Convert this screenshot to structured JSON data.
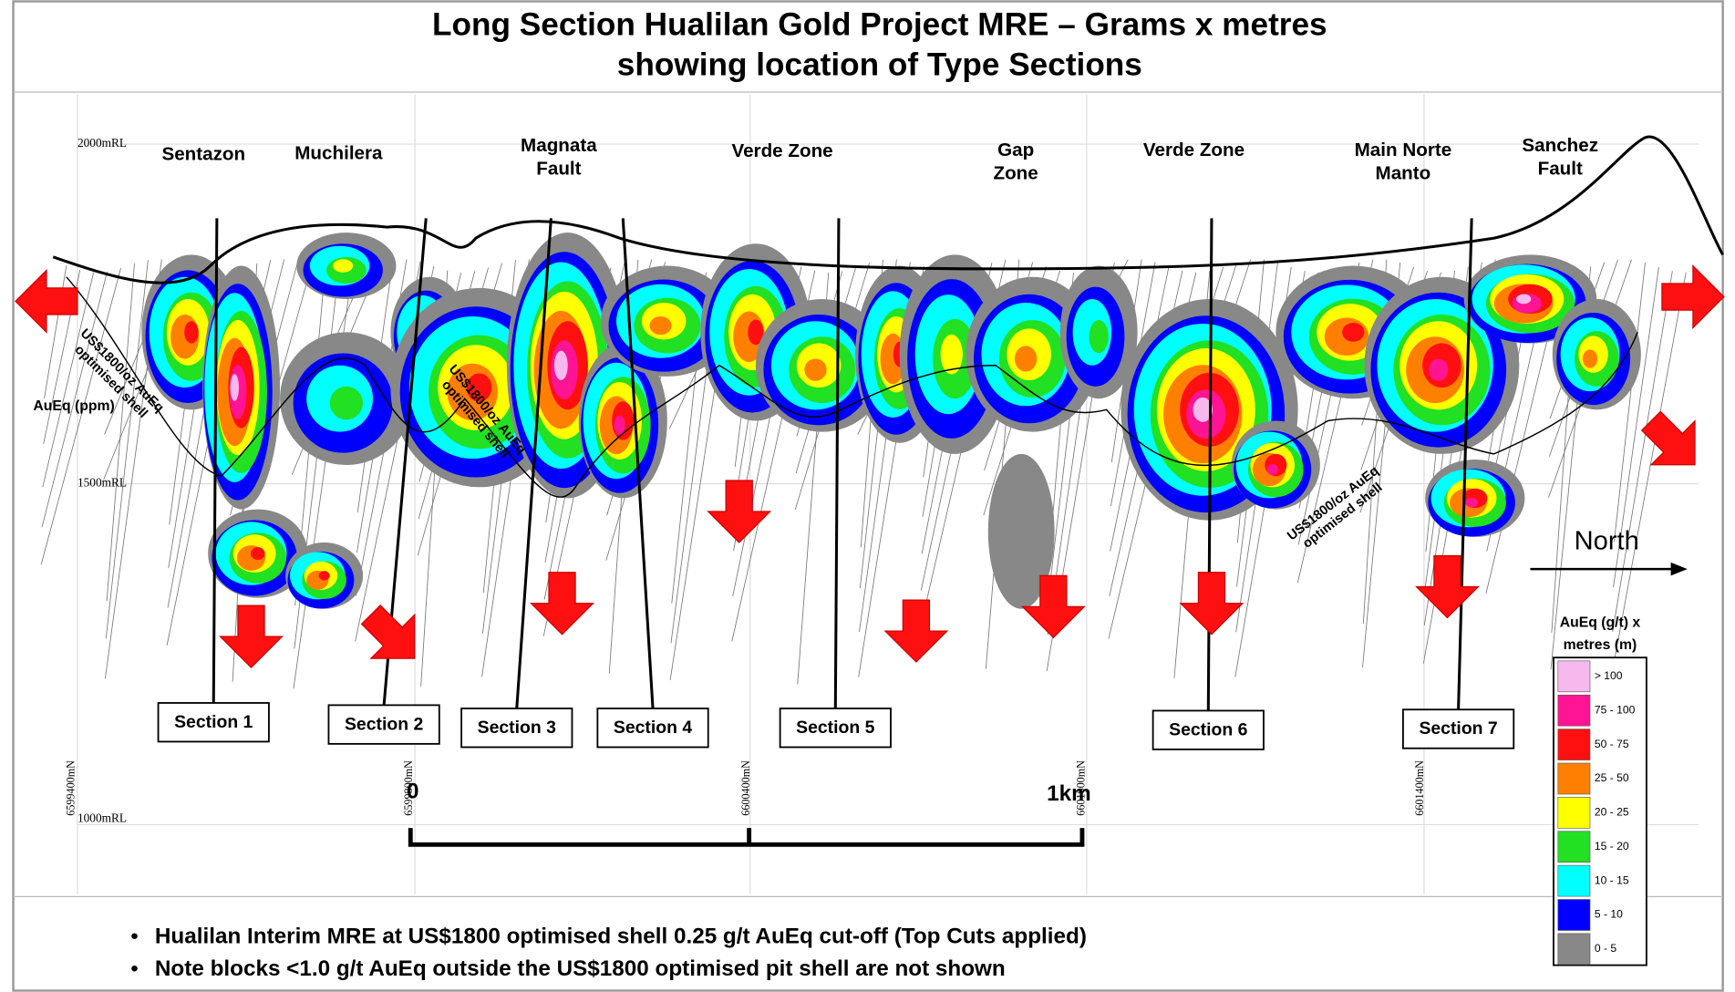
{
  "title": [
    "Long Section Hualilan Gold Project MRE – Grams x metres",
    "showing location of Type Sections"
  ],
  "zones": [
    [
      "Sentazon"
    ],
    [
      "Muchilera"
    ],
    [
      "Magnata",
      "Fault"
    ],
    [
      "Verde Zone"
    ],
    [
      "Gap",
      "Zone"
    ],
    [
      "Verde Zone"
    ],
    [
      "Main Norte",
      "Manto"
    ],
    [
      "Sanchez",
      "Fault"
    ]
  ],
  "sections": [
    "Section 1",
    "Section 2",
    "Section 3",
    "Section 4",
    "Section 5",
    "Section 6",
    "Section 7"
  ],
  "elevations": [
    "2000mRL",
    "1500mRL",
    "1000mRL"
  ],
  "northings": [
    "6599400mN",
    "6599800mN",
    "6600400mN",
    "6601000mN",
    "6601400mN"
  ],
  "scale": [
    "0",
    "1km"
  ],
  "shell_labels": [
    [
      "US$1800/oz AuEq",
      "optimised shell"
    ],
    [
      "US$1800/oz AuEq",
      "optimised shell"
    ],
    [
      "US$1800/oz AuEq",
      "optimised shell"
    ]
  ],
  "axis_label": "AuEq (ppm)",
  "north": "North",
  "legend": {
    "title": [
      "AuEq (g/t) x",
      "metres (m)"
    ],
    "items": [
      {
        "label": "> 100",
        "color": "#f7b8ee"
      },
      {
        "label": "75 - 100",
        "color": "#ff1493"
      },
      {
        "label": "50 - 75",
        "color": "#ff1010"
      },
      {
        "label": "25 - 50",
        "color": "#ff8000"
      },
      {
        "label": "20 - 25",
        "color": "#ffff00"
      },
      {
        "label": "15 - 20",
        "color": "#22e022"
      },
      {
        "label": "10 - 15",
        "color": "#00ffff"
      },
      {
        "label": "5 - 10",
        "color": "#0000ff"
      },
      {
        "label": "0 - 5",
        "color": "#888888"
      }
    ]
  },
  "notes": [
    "Hualilan Interim MRE at US$1800 optimised shell 0.25 g/t AuEq cut-off (Top Cuts applied)",
    "Note blocks <1.0 g/t AuEq outside the US$1800 optimised pit shell are not shown"
  ]
}
